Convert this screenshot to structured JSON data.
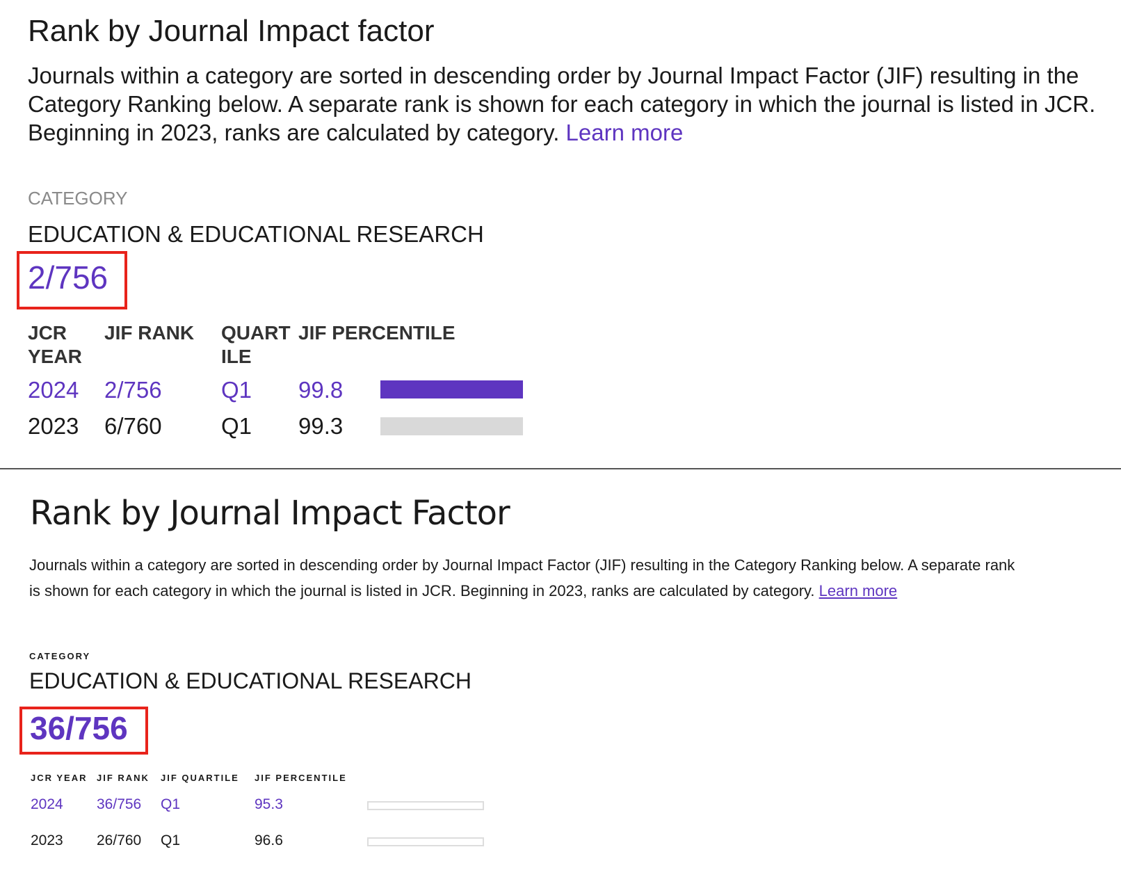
{
  "top": {
    "title": "Rank by Journal Impact factor",
    "description": "Journals within a category are sorted in descending order by Journal Impact Factor (JIF) resulting in the Category Ranking below. A separate rank is shown for each category in which the journal is listed in JCR. Beginning in 2023, ranks are calculated by category.",
    "learn_more": "Learn more",
    "category_label": "CATEGORY",
    "category_name": "EDUCATION & EDUCATIONAL RESEARCH",
    "rank": "2/756",
    "headers": [
      "JCR YEAR",
      "JIF RANK",
      "QUARTILE",
      "JIF PERCENTILE"
    ],
    "rows": [
      {
        "year": "2024",
        "rank": "2/756",
        "quartile": "Q1",
        "percentile": "99.8",
        "fill": 99.8
      },
      {
        "year": "2023",
        "rank": "6/760",
        "quartile": "Q1",
        "percentile": "99.3",
        "fill": 0
      }
    ]
  },
  "bottom": {
    "title": "Rank by Journal Impact Factor",
    "description": "Journals within a category are sorted in descending order by Journal Impact Factor (JIF) resulting in the Category Ranking below. A separate rank is shown for each category in which the journal is listed in JCR. Beginning in 2023, ranks are calculated by category.",
    "learn_more": "Learn more",
    "category_label": "CATEGORY",
    "category_name": "EDUCATION & EDUCATIONAL RESEARCH",
    "rank": "36/756",
    "headers": [
      "JCR YEAR",
      "JIF RANK",
      "JIF QUARTILE",
      "JIF PERCENTILE"
    ],
    "rows": [
      {
        "year": "2024",
        "rank": "36/756",
        "quartile": "Q1",
        "percentile": "95.3",
        "fill": 0
      },
      {
        "year": "2023",
        "rank": "26/760",
        "quartile": "Q1",
        "percentile": "96.6",
        "fill": 0
      }
    ]
  },
  "colors": {
    "accent": "#5e35c0",
    "highlight": "#e8231b"
  }
}
